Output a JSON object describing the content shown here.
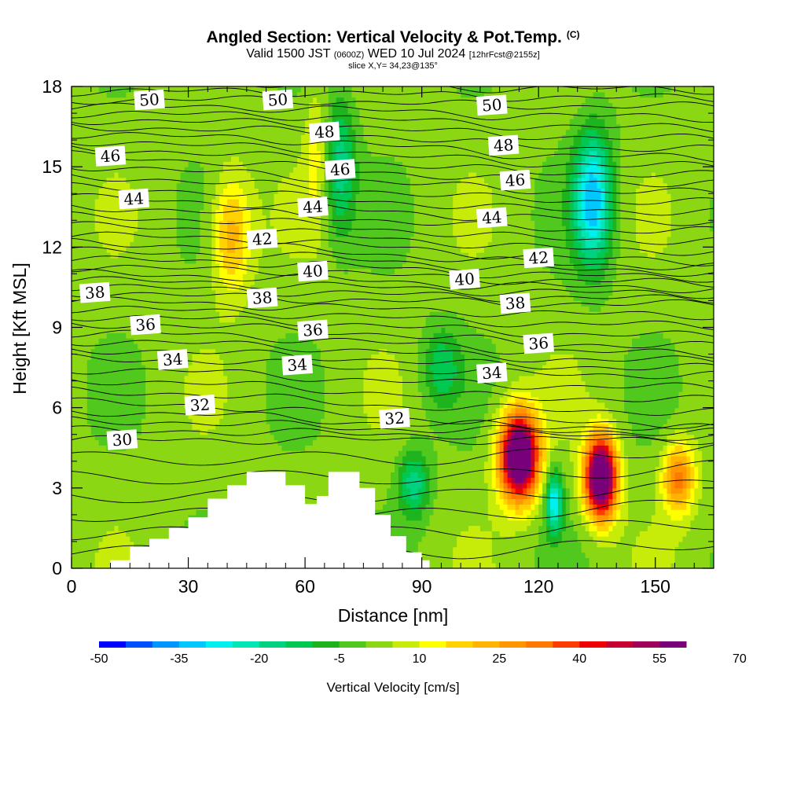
{
  "header": {
    "title": "Angled Section: Vertical Velocity & Pot.Temp.",
    "copyright": "(C)",
    "valid_prefix": "Valid 1500 JST",
    "valid_utc": "(0600Z)",
    "valid_date": "WED 10 Jul 2024",
    "forecast": "[12hrFcst@2155z]",
    "slice": "slice X,Y= 34,23@135°"
  },
  "chart_data": {
    "type": "heatmap",
    "title": "Angled Section: Vertical Velocity & Pot.Temp.",
    "xlabel": "Distance [nm]",
    "ylabel": "Height [Kft MSL]",
    "xlim": [
      0,
      165
    ],
    "ylim": [
      0,
      18
    ],
    "x_ticks": [
      0,
      30,
      60,
      90,
      120,
      150
    ],
    "y_ticks": [
      0,
      3,
      6,
      9,
      12,
      15,
      18
    ],
    "fill_variable": "Vertical Velocity [cm/s]",
    "contour_variable": "Pot.Temp.",
    "colorbar": {
      "label": "Vertical Velocity [cm/s]",
      "tick_values": [
        -50,
        -35,
        -20,
        -5,
        10,
        25,
        40,
        55,
        70
      ],
      "tick_labels": [
        "-50",
        "-35",
        "-20",
        "-5",
        "10",
        "25",
        "40",
        "55",
        "70"
      ],
      "min": -50,
      "step": 5,
      "colors": [
        "#0000ff",
        "#0050ff",
        "#0096ff",
        "#00c8ff",
        "#00f0f0",
        "#00e6b4",
        "#00d282",
        "#00c850",
        "#1eb41e",
        "#50c81e",
        "#8cd714",
        "#c8ec0a",
        "#ffff00",
        "#ffd200",
        "#ffb400",
        "#ff9600",
        "#ff7800",
        "#ff3c00",
        "#f00000",
        "#c80032",
        "#a0005a",
        "#780078"
      ]
    },
    "terrain": [
      {
        "x": 0,
        "y": 0
      },
      {
        "x": 10,
        "y": 0.3
      },
      {
        "x": 15,
        "y": 0.8
      },
      {
        "x": 20,
        "y": 1.1
      },
      {
        "x": 25,
        "y": 1.5
      },
      {
        "x": 30,
        "y": 1.9
      },
      {
        "x": 35,
        "y": 2.6
      },
      {
        "x": 40,
        "y": 3.1
      },
      {
        "x": 45,
        "y": 3.6
      },
      {
        "x": 52,
        "y": 3.6
      },
      {
        "x": 55,
        "y": 3.1
      },
      {
        "x": 60,
        "y": 2.4
      },
      {
        "x": 63,
        "y": 2.7
      },
      {
        "x": 66,
        "y": 3.6
      },
      {
        "x": 71,
        "y": 3.6
      },
      {
        "x": 74,
        "y": 3.0
      },
      {
        "x": 78,
        "y": 2.0
      },
      {
        "x": 82,
        "y": 1.2
      },
      {
        "x": 86,
        "y": 0.6
      },
      {
        "x": 90,
        "y": 0.3
      },
      {
        "x": 92,
        "y": 0
      }
    ],
    "updraft_cells": [
      {
        "x": 115,
        "y": 4.2,
        "peak": 75
      },
      {
        "x": 136,
        "y": 3.4,
        "peak": 75
      },
      {
        "x": 156,
        "y": 3.4,
        "peak": 30
      },
      {
        "x": 41,
        "y": 12.5,
        "peak": 22
      },
      {
        "x": 63,
        "y": 15.5,
        "peak": 10
      }
    ],
    "downdraft_cells": [
      {
        "x": 134,
        "y": 13.8,
        "peak": -35
      },
      {
        "x": 124,
        "y": 2.5,
        "peak": -30
      },
      {
        "x": 69,
        "y": 15,
        "peak": -20
      },
      {
        "x": 88,
        "y": 3.2,
        "peak": -20
      },
      {
        "x": 95,
        "y": 7.5,
        "peak": -15
      }
    ],
    "theta_labels": [
      {
        "text": "50",
        "x": 20,
        "y": 17.5
      },
      {
        "text": "50",
        "x": 53,
        "y": 17.5
      },
      {
        "text": "50",
        "x": 108,
        "y": 17.3
      },
      {
        "text": "48",
        "x": 65,
        "y": 16.3
      },
      {
        "text": "48",
        "x": 111,
        "y": 15.8
      },
      {
        "text": "46",
        "x": 10,
        "y": 15.4
      },
      {
        "text": "46",
        "x": 69,
        "y": 14.9
      },
      {
        "text": "46",
        "x": 114,
        "y": 14.5
      },
      {
        "text": "44",
        "x": 16,
        "y": 13.8
      },
      {
        "text": "44",
        "x": 62,
        "y": 13.5
      },
      {
        "text": "44",
        "x": 108,
        "y": 13.1
      },
      {
        "text": "42",
        "x": 49,
        "y": 12.3
      },
      {
        "text": "42",
        "x": 120,
        "y": 11.6
      },
      {
        "text": "40",
        "x": 62,
        "y": 11.1
      },
      {
        "text": "40",
        "x": 101,
        "y": 10.8
      },
      {
        "text": "38",
        "x": 6,
        "y": 10.3
      },
      {
        "text": "38",
        "x": 49,
        "y": 10.1
      },
      {
        "text": "38",
        "x": 114,
        "y": 9.9
      },
      {
        "text": "36",
        "x": 19,
        "y": 9.1
      },
      {
        "text": "36",
        "x": 62,
        "y": 8.9
      },
      {
        "text": "36",
        "x": 120,
        "y": 8.4
      },
      {
        "text": "34",
        "x": 26,
        "y": 7.8
      },
      {
        "text": "34",
        "x": 58,
        "y": 7.6
      },
      {
        "text": "34",
        "x": 108,
        "y": 7.3
      },
      {
        "text": "32",
        "x": 33,
        "y": 6.1
      },
      {
        "text": "32",
        "x": 83,
        "y": 5.6
      },
      {
        "text": "30",
        "x": 13,
        "y": 4.8
      }
    ]
  }
}
